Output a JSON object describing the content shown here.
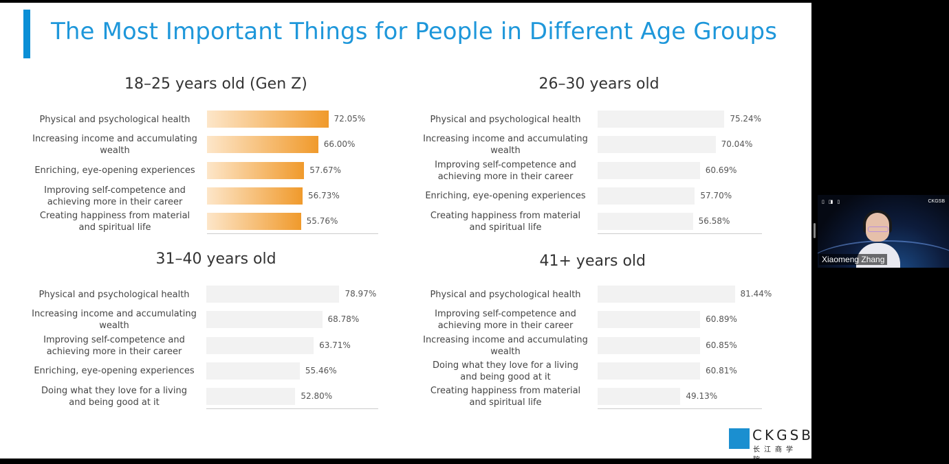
{
  "slide_title": "The Most Important Things for People in Different Age Groups",
  "video": {
    "participant_name": "Xiaomeng Zhang",
    "logo_text": "CKGSB",
    "icons": "▯ ◨ ▯"
  },
  "logo": {
    "text": "CKGSB",
    "sub": "长江商学院"
  },
  "colors": {
    "accent": "#0b8fd6",
    "bar_orange": "#f09a2c",
    "bar_gray": "#f2f2f2"
  },
  "chart_data": [
    {
      "type": "bar",
      "orientation": "horizontal",
      "title": "18–25 years old (Gen Z)",
      "categories": [
        "Physical and psychological health",
        "Increasing income and accumulating wealth",
        "Enriching, eye-opening experiences",
        "Improving self-competence and achieving more in their career",
        "Creating happiness from material and spiritual life"
      ],
      "values": [
        72.05,
        66.0,
        57.67,
        56.73,
        55.76
      ],
      "value_labels": [
        "72.05%",
        "66.00%",
        "57.67%",
        "56.73%",
        "55.76%"
      ],
      "bar_style": "colored"
    },
    {
      "type": "bar",
      "orientation": "horizontal",
      "title": "26–30 years old",
      "categories": [
        "Physical and psychological health",
        "Increasing income and accumulating wealth",
        "Improving self-competence and achieving more in their career",
        "Enriching, eye-opening experiences",
        "Creating happiness from material and spiritual life"
      ],
      "values": [
        75.24,
        70.04,
        60.69,
        57.7,
        56.58
      ],
      "value_labels": [
        "75.24%",
        "70.04%",
        "60.69%",
        "57.70%",
        "56.58%"
      ],
      "bar_style": "gray"
    },
    {
      "type": "bar",
      "orientation": "horizontal",
      "title": "31–40 years old",
      "categories": [
        "Physical and psychological health",
        "Increasing income and accumulating wealth",
        "Improving self-competence and achieving more in their career",
        "Enriching, eye-opening experiences",
        "Doing what they  love for a living and being good at it"
      ],
      "values": [
        78.97,
        68.78,
        63.71,
        55.46,
        52.8
      ],
      "value_labels": [
        "78.97%",
        "68.78%",
        "63.71%",
        "55.46%",
        "52.80%"
      ],
      "bar_style": "gray"
    },
    {
      "type": "bar",
      "orientation": "horizontal",
      "title": "41+ years old",
      "categories": [
        "Physical and psychological health",
        "Improving self-competence and achieving more in their career",
        "Increasing income and accumulating wealth",
        "Doing what they  love for a living and being good at it",
        "Creating happiness from material and spiritual life"
      ],
      "values": [
        81.44,
        60.89,
        60.85,
        60.81,
        49.13
      ],
      "value_labels": [
        "81.44%",
        "60.89%",
        "60.85%",
        "60.81%",
        "49.13%"
      ],
      "bar_style": "gray"
    }
  ]
}
